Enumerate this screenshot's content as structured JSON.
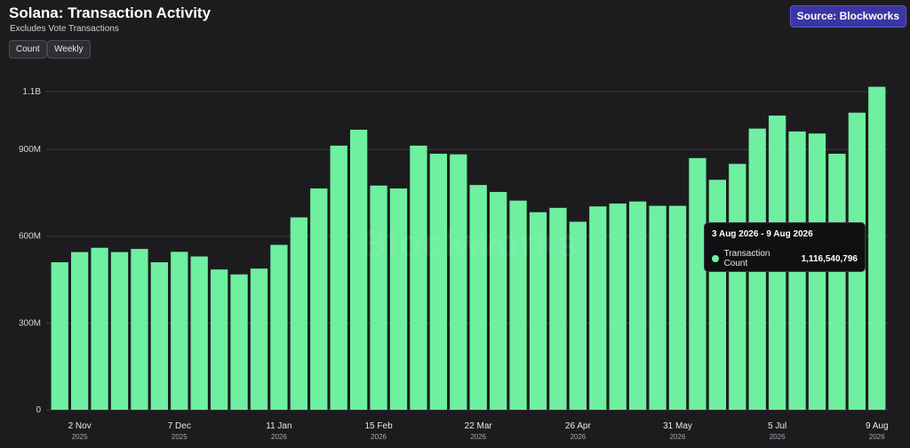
{
  "header": {
    "title": "Solana: Transaction Activity",
    "subtitle": "Excludes Vote Transactions",
    "source": "Source: Blockworks",
    "watermark": "Blockworks"
  },
  "toggles": {
    "count_label": "Count",
    "weekly_label": "Weekly"
  },
  "tooltip": {
    "date_range": "3 Aug 2026 - 9 Aug 2026",
    "series_label": "Transaction Count",
    "value": "1,116,540,796"
  },
  "colors": {
    "background": "#1c1c1f",
    "bar": "#6ef0a0",
    "accent": "#3a36a3",
    "grid": "#3a3a40"
  },
  "chart_data": {
    "type": "bar",
    "title": "Solana: Transaction Activity",
    "subtitle": "Excludes Vote Transactions",
    "xlabel": "",
    "ylabel": "",
    "ylim": [
      0,
      1100000000
    ],
    "y_ticks": [
      {
        "value": 0,
        "label": "0"
      },
      {
        "value": 300000000,
        "label": "300M"
      },
      {
        "value": 600000000,
        "label": "600M"
      },
      {
        "value": 900000000,
        "label": "900M"
      },
      {
        "value": 1100000000,
        "label": "1.1B"
      }
    ],
    "x_ticks": [
      {
        "index": 1,
        "label": "2 Nov",
        "year": "2025"
      },
      {
        "index": 6,
        "label": "7 Dec",
        "year": "2025"
      },
      {
        "index": 11,
        "label": "11 Jan",
        "year": "2026"
      },
      {
        "index": 16,
        "label": "15 Feb",
        "year": "2026"
      },
      {
        "index": 21,
        "label": "22 Mar",
        "year": "2026"
      },
      {
        "index": 26,
        "label": "26 Apr",
        "year": "2026"
      },
      {
        "index": 31,
        "label": "31 May",
        "year": "2026"
      },
      {
        "index": 36,
        "label": "5 Jul",
        "year": "2026"
      },
      {
        "index": 41,
        "label": "9 Aug",
        "year": "2026"
      }
    ],
    "grid": true,
    "series": [
      {
        "name": "Transaction Count",
        "values": [
          510000000,
          545000000,
          560000000,
          545000000,
          556000000,
          510000000,
          546000000,
          530000000,
          485000000,
          468000000,
          488000000,
          570000000,
          665000000,
          765000000,
          913000000,
          968000000,
          775000000,
          765000000,
          913000000,
          885000000,
          883000000,
          777000000,
          753000000,
          723000000,
          683000000,
          698000000,
          650000000,
          703000000,
          713000000,
          720000000,
          705000000,
          705000000,
          870000000,
          795000000,
          850000000,
          972000000,
          1017000000,
          962000000,
          955000000,
          885000000,
          1027000000,
          1116540796
        ]
      }
    ]
  }
}
